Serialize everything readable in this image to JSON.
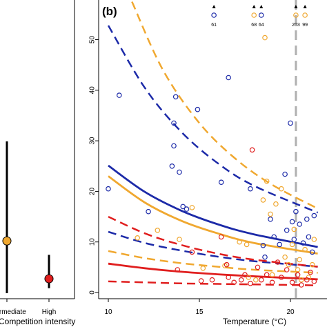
{
  "chart_data": [
    {
      "type": "point-range",
      "panel_label": "",
      "xlabel": "Competition intensity",
      "categories": [
        "Intermediate",
        "High"
      ],
      "ylim": [
        0,
        60
      ],
      "points": [
        {
          "category": "Intermediate",
          "value": 10.5,
          "lower": 0,
          "upper": 30.5,
          "color": "#f0a830"
        },
        {
          "category": "High",
          "value": 2.9,
          "lower": 1,
          "upper": 7.7,
          "color": "#e01e1e"
        }
      ]
    },
    {
      "type": "scatter",
      "panel_label": "(b)",
      "xlabel": "Temperature (°C)",
      "ylabel": "",
      "xlim": [
        9.6,
        21.5
      ],
      "ylim": [
        -0.3,
        58
      ],
      "xticks": [
        10,
        15,
        20
      ],
      "yticks": [
        0,
        10,
        20,
        30,
        40,
        50
      ],
      "grid": false,
      "vline": {
        "x": 20.3,
        "color": "#b0b0b0",
        "style": "dashed"
      },
      "offscale": [
        {
          "x": 15.8,
          "label": "61",
          "color": "#1c2aa8"
        },
        {
          "x": 18.0,
          "label": "68",
          "color": "#f0a830"
        },
        {
          "x": 18.4,
          "label": "64",
          "color": "#1c2aa8"
        },
        {
          "x": 20.3,
          "label": "203",
          "color": "#f0a830"
        },
        {
          "x": 20.8,
          "label": "99",
          "color": "#f0a830"
        }
      ],
      "series": [
        {
          "color": "#1c2aa8",
          "fit": {
            "x": [
              10,
              12,
              14,
              16,
              18,
              21.5
            ],
            "y": [
              25.1,
              19.9,
              16.2,
              13.5,
              11.5,
              9.0
            ]
          },
          "ci_upper": {
            "x": [
              10,
              12,
              14,
              16,
              18,
              21.5
            ],
            "y": [
              52.8,
              40.5,
              31.8,
              25.6,
              21.1,
              15.8
            ]
          },
          "ci_lower": {
            "x": [
              10,
              12,
              14,
              16,
              18,
              21.5
            ],
            "y": [
              12.0,
              9.8,
              8.3,
              7.1,
              6.2,
              5.1
            ]
          },
          "points": [
            {
              "x": 10.0,
              "y": 20.5
            },
            {
              "x": 10.6,
              "y": 39.0
            },
            {
              "x": 12.2,
              "y": 16.0
            },
            {
              "x": 13.5,
              "y": 25.0
            },
            {
              "x": 13.6,
              "y": 33.5
            },
            {
              "x": 13.6,
              "y": 29.0
            },
            {
              "x": 13.7,
              "y": 38.7
            },
            {
              "x": 13.9,
              "y": 23.8
            },
            {
              "x": 14.1,
              "y": 17.0
            },
            {
              "x": 14.3,
              "y": 16.5
            },
            {
              "x": 14.9,
              "y": 36.2
            },
            {
              "x": 16.2,
              "y": 21.8
            },
            {
              "x": 16.6,
              "y": 42.5
            },
            {
              "x": 17.8,
              "y": 20.5
            },
            {
              "x": 18.5,
              "y": 9.3
            },
            {
              "x": 18.6,
              "y": 7.0
            },
            {
              "x": 18.9,
              "y": 14.5
            },
            {
              "x": 19.1,
              "y": 11.0
            },
            {
              "x": 19.4,
              "y": 9.5
            },
            {
              "x": 19.7,
              "y": 23.4
            },
            {
              "x": 19.8,
              "y": 12.3
            },
            {
              "x": 20.0,
              "y": 33.5
            },
            {
              "x": 20.1,
              "y": 14.0
            },
            {
              "x": 20.2,
              "y": 10.5
            },
            {
              "x": 20.3,
              "y": 16.0
            },
            {
              "x": 20.5,
              "y": 13.5
            },
            {
              "x": 20.7,
              "y": 9.8
            },
            {
              "x": 20.9,
              "y": 14.5
            },
            {
              "x": 21.0,
              "y": 11.0
            },
            {
              "x": 21.2,
              "y": 8.0
            },
            {
              "x": 21.3,
              "y": 15.2
            }
          ]
        },
        {
          "color": "#f0a830",
          "fit": {
            "x": [
              10,
              12,
              14,
              16,
              18,
              21.5
            ],
            "y": [
              23.0,
              17.8,
              14.2,
              11.7,
              9.8,
              7.7
            ]
          },
          "ci_upper": {
            "x": [
              11.3,
              13,
              15,
              17,
              19,
              21.5
            ],
            "y": [
              57.5,
              44.0,
              33.5,
              26.4,
              21.3,
              16.6
            ]
          },
          "ci_lower": {
            "x": [
              10,
              12,
              14,
              16,
              18,
              21.5
            ],
            "y": [
              8.2,
              6.8,
              5.8,
              5.1,
              4.5,
              3.9
            ]
          },
          "points": [
            {
              "x": 11.6,
              "y": 10.8
            },
            {
              "x": 12.7,
              "y": 12.3
            },
            {
              "x": 13.9,
              "y": 10.5
            },
            {
              "x": 14.6,
              "y": 16.8
            },
            {
              "x": 15.2,
              "y": 4.8
            },
            {
              "x": 16.4,
              "y": 5.3
            },
            {
              "x": 17.2,
              "y": 10.0
            },
            {
              "x": 17.6,
              "y": 9.5
            },
            {
              "x": 17.7,
              "y": 3.0
            },
            {
              "x": 18.1,
              "y": 2.5
            },
            {
              "x": 18.5,
              "y": 18.3
            },
            {
              "x": 18.6,
              "y": 50.4
            },
            {
              "x": 18.7,
              "y": 22.0
            },
            {
              "x": 18.9,
              "y": 15.5
            },
            {
              "x": 19.0,
              "y": 3.5
            },
            {
              "x": 19.2,
              "y": 17.5
            },
            {
              "x": 19.5,
              "y": 20.5
            },
            {
              "x": 19.7,
              "y": 7.0
            },
            {
              "x": 19.9,
              "y": 5.5
            },
            {
              "x": 20.1,
              "y": 9.5
            },
            {
              "x": 20.2,
              "y": 12.5
            },
            {
              "x": 20.4,
              "y": 4.5
            },
            {
              "x": 20.5,
              "y": 6.5
            },
            {
              "x": 20.6,
              "y": 2.5
            },
            {
              "x": 20.8,
              "y": 8.5
            },
            {
              "x": 21.0,
              "y": 3.0
            },
            {
              "x": 21.2,
              "y": 5.5
            },
            {
              "x": 21.3,
              "y": 10.5
            }
          ]
        },
        {
          "color": "#e01e1e",
          "fit": {
            "x": [
              10,
              12,
              14,
              16,
              18,
              21.5
            ],
            "y": [
              5.7,
              4.8,
              4.1,
              3.6,
              3.2,
              2.6
            ]
          },
          "ci_upper": {
            "x": [
              10,
              12,
              14,
              16,
              18,
              21.5
            ],
            "y": [
              15.0,
              11.7,
              9.4,
              7.7,
              6.5,
              5.1
            ]
          },
          "ci_lower": {
            "x": [
              10,
              12,
              14,
              16,
              18,
              21.5
            ],
            "y": [
              2.2,
              2.0,
              1.8,
              1.7,
              1.6,
              1.4
            ]
          },
          "points": [
            {
              "x": 13.8,
              "y": 4.5
            },
            {
              "x": 14.6,
              "y": 8.0
            },
            {
              "x": 15.1,
              "y": 2.3
            },
            {
              "x": 15.7,
              "y": 2.5
            },
            {
              "x": 16.2,
              "y": 11.0
            },
            {
              "x": 16.5,
              "y": 5.5
            },
            {
              "x": 16.6,
              "y": 3.0
            },
            {
              "x": 16.9,
              "y": 2.0
            },
            {
              "x": 17.3,
              "y": 2.5
            },
            {
              "x": 17.5,
              "y": 3.5
            },
            {
              "x": 17.8,
              "y": 1.8
            },
            {
              "x": 17.9,
              "y": 28.2
            },
            {
              "x": 18.2,
              "y": 5.0
            },
            {
              "x": 18.4,
              "y": 2.5
            },
            {
              "x": 18.7,
              "y": 3.5
            },
            {
              "x": 19.0,
              "y": 2.0
            },
            {
              "x": 19.3,
              "y": 6.0
            },
            {
              "x": 19.5,
              "y": 3.0
            },
            {
              "x": 19.8,
              "y": 4.5
            },
            {
              "x": 20.1,
              "y": 2.0
            },
            {
              "x": 20.4,
              "y": 3.5
            },
            {
              "x": 20.6,
              "y": 1.5
            },
            {
              "x": 20.9,
              "y": 2.5
            },
            {
              "x": 21.1,
              "y": 4.0
            },
            {
              "x": 21.3,
              "y": 2.2
            }
          ]
        }
      ]
    }
  ]
}
